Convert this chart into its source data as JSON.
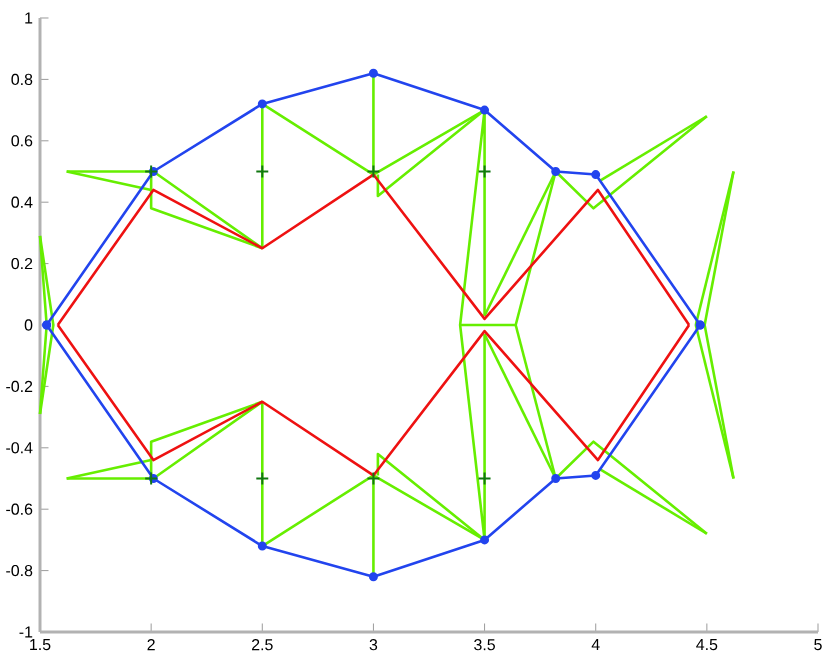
{
  "chart_data": {
    "type": "line",
    "xlim": [
      1.5,
      5
    ],
    "ylim": [
      -1,
      1
    ],
    "xticks": [
      1.5,
      2,
      2.5,
      3,
      3.5,
      4,
      4.5,
      5
    ],
    "yticks": [
      -1,
      -0.8,
      -0.6,
      -0.4,
      -0.2,
      0,
      0.2,
      0.4,
      0.6,
      0.8,
      1
    ],
    "grid": false,
    "line_style": "solid",
    "series": [
      {
        "type": "line",
        "color": "#66ee00",
        "marker": "none",
        "x": [
          1.5,
          1.53,
          1.5
        ],
        "values": [
          0.29,
          0,
          -0.29
        ]
      },
      {
        "type": "line",
        "color": "#66ee00",
        "marker": "none",
        "x": [
          1.5,
          1.56,
          1.5
        ],
        "values": [
          0.29,
          0,
          -0.29
        ]
      },
      {
        "type": "line",
        "color": "#66ee00",
        "marker": "none",
        "x": [
          1.62,
          2.0
        ],
        "values": [
          0.5,
          0.44
        ]
      },
      {
        "type": "line",
        "color": "#66ee00",
        "marker": "none",
        "x": [
          1.62,
          2.01,
          2.5
        ],
        "values": [
          0.5,
          0.5,
          0.25
        ]
      },
      {
        "type": "line",
        "color": "#66ee00",
        "marker": "none",
        "x": [
          2.0,
          2.0,
          2.5
        ],
        "values": [
          0.5,
          0.38,
          0.25
        ]
      },
      {
        "type": "line",
        "color": "#66ee00",
        "marker": "none",
        "x": [
          2.5,
          2.5,
          3
        ],
        "values": [
          0.25,
          0.72,
          0.49
        ]
      },
      {
        "type": "line",
        "color": "#66ee00",
        "marker": "none",
        "x": [
          3,
          3,
          3.5
        ],
        "values": [
          0.82,
          0.49,
          0.7
        ]
      },
      {
        "type": "line",
        "color": "#66ee00",
        "marker": "none",
        "x": [
          3.02,
          3.02,
          3.5
        ],
        "values": [
          0.49,
          0.42,
          0.7
        ]
      },
      {
        "type": "line",
        "color": "#66ee00",
        "marker": "none",
        "x": [
          3.5,
          3.5,
          3.39,
          3.5,
          3.5
        ],
        "values": [
          0.03,
          0.7,
          0,
          -0.7,
          -0.03
        ]
      },
      {
        "type": "line",
        "color": "#66ee00",
        "marker": "none",
        "x": [
          3.39,
          3.64,
          3.82
        ],
        "values": [
          0,
          0,
          0.5
        ]
      },
      {
        "type": "line",
        "color": "#66ee00",
        "marker": "none",
        "x": [
          3.5,
          3.82
        ],
        "values": [
          0.03,
          0.5
        ]
      },
      {
        "type": "line",
        "color": "#66ee00",
        "marker": "none",
        "x": [
          3.82,
          3.99,
          4.5
        ],
        "values": [
          0.5,
          0.38,
          0.68
        ]
      },
      {
        "type": "line",
        "color": "#66ee00",
        "marker": "none",
        "x": [
          4.02,
          4.5
        ],
        "values": [
          0.47,
          0.68
        ]
      },
      {
        "type": "line",
        "color": "#66ee00",
        "marker": "none",
        "x": [
          4.45,
          4.62
        ],
        "values": [
          0,
          0.5
        ]
      },
      {
        "type": "line",
        "color": "#66ee00",
        "marker": "none",
        "x": [
          4.49,
          4.62
        ],
        "values": [
          0,
          0.5
        ]
      },
      {
        "type": "line",
        "color": "#66ee00",
        "marker": "none",
        "x": [
          1.62,
          2.0
        ],
        "values": [
          -0.5,
          -0.44
        ]
      },
      {
        "type": "line",
        "color": "#66ee00",
        "marker": "none",
        "x": [
          1.62,
          2.01,
          2.5
        ],
        "values": [
          -0.5,
          -0.5,
          -0.25
        ]
      },
      {
        "type": "line",
        "color": "#66ee00",
        "marker": "none",
        "x": [
          2.0,
          2.0,
          2.5
        ],
        "values": [
          -0.5,
          -0.38,
          -0.25
        ]
      },
      {
        "type": "line",
        "color": "#66ee00",
        "marker": "none",
        "x": [
          2.5,
          2.5,
          3
        ],
        "values": [
          -0.25,
          -0.72,
          -0.49
        ]
      },
      {
        "type": "line",
        "color": "#66ee00",
        "marker": "none",
        "x": [
          3,
          3,
          3.5
        ],
        "values": [
          -0.82,
          -0.49,
          -0.7
        ]
      },
      {
        "type": "line",
        "color": "#66ee00",
        "marker": "none",
        "x": [
          3.02,
          3.02,
          3.5
        ],
        "values": [
          -0.49,
          -0.42,
          -0.7
        ]
      },
      {
        "type": "line",
        "color": "#66ee00",
        "marker": "none",
        "x": [
          3.5,
          3.82
        ],
        "values": [
          -0.03,
          -0.5
        ]
      },
      {
        "type": "line",
        "color": "#66ee00",
        "marker": "none",
        "x": [
          3.64,
          3.82
        ],
        "values": [
          0,
          -0.5
        ]
      },
      {
        "type": "line",
        "color": "#66ee00",
        "marker": "none",
        "x": [
          3.82,
          3.99,
          4.5
        ],
        "values": [
          -0.5,
          -0.38,
          -0.68
        ]
      },
      {
        "type": "line",
        "color": "#66ee00",
        "marker": "none",
        "x": [
          4.02,
          4.5
        ],
        "values": [
          -0.47,
          -0.68
        ]
      },
      {
        "type": "line",
        "color": "#66ee00",
        "marker": "none",
        "x": [
          4.45,
          4.62
        ],
        "values": [
          0,
          -0.5
        ]
      },
      {
        "type": "line",
        "color": "#66ee00",
        "marker": "none",
        "x": [
          4.49,
          4.62
        ],
        "values": [
          0,
          -0.5
        ]
      },
      {
        "type": "line",
        "color": "#ee1111",
        "marker": "none",
        "x": [
          1.58,
          2.01,
          2.5,
          3,
          3.5,
          4.01,
          4.42
        ],
        "values": [
          0,
          0.44,
          0.25,
          0.49,
          0.02,
          0.44,
          0
        ]
      },
      {
        "type": "line",
        "color": "#ee1111",
        "marker": "none",
        "x": [
          1.58,
          2.01,
          2.5,
          3,
          3.5,
          4.01,
          4.42
        ],
        "values": [
          0,
          -0.44,
          -0.25,
          -0.49,
          -0.02,
          -0.44,
          0
        ]
      },
      {
        "type": "line",
        "color": "#2244ee",
        "marker": "circle",
        "x": [
          1.53,
          2.01,
          2.5,
          3,
          3.5,
          3.82,
          4,
          4.47
        ],
        "values": [
          0,
          0.5,
          0.72,
          0.82,
          0.7,
          0.5,
          0.49,
          0
        ]
      },
      {
        "type": "line",
        "color": "#2244ee",
        "marker": "circle",
        "x": [
          1.53,
          2.01,
          2.5,
          3,
          3.5,
          3.82,
          4,
          4.47
        ],
        "values": [
          0,
          -0.5,
          -0.72,
          -0.82,
          -0.7,
          -0.5,
          -0.49,
          0
        ]
      },
      {
        "type": "scatter",
        "color": "#117711",
        "marker": "cross",
        "x": [
          2,
          2.5,
          3,
          3.5,
          2,
          2.5,
          3,
          3.5
        ],
        "values": [
          0.5,
          0.5,
          0.5,
          0.5,
          -0.5,
          -0.5,
          -0.5,
          -0.5
        ]
      }
    ]
  }
}
